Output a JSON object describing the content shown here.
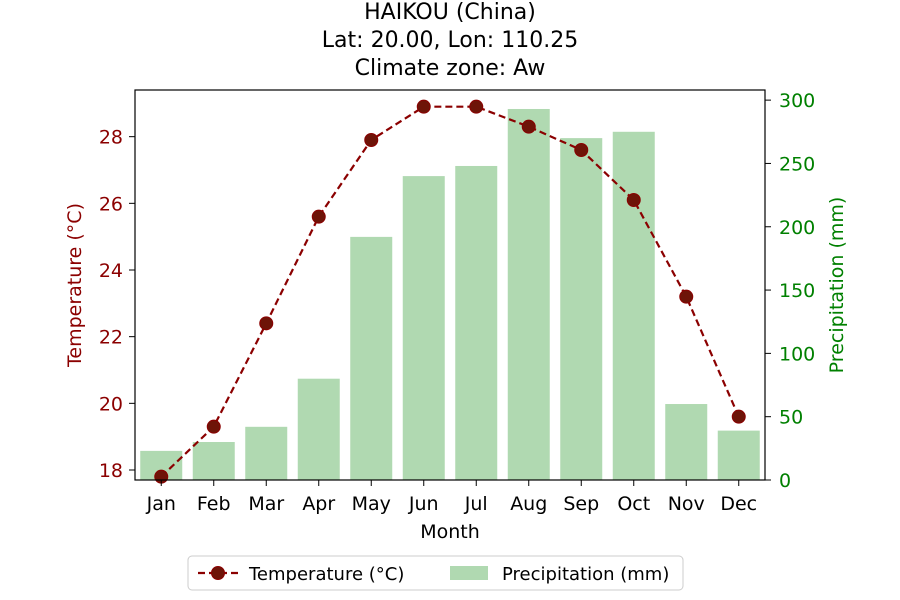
{
  "chart_data": {
    "type": "bar+line",
    "title_lines": [
      "HAIKOU (China)",
      "Lat: 20.00, Lon: 110.25",
      "Climate zone: Aw"
    ],
    "xlabel": "Month",
    "ylabel_left": "Temperature (°C)",
    "ylabel_right": "Precipitation (mm)",
    "categories": [
      "Jan",
      "Feb",
      "Mar",
      "Apr",
      "May",
      "Jun",
      "Jul",
      "Aug",
      "Sep",
      "Oct",
      "Nov",
      "Dec"
    ],
    "temperature": {
      "name": "Temperature (°C)",
      "values": [
        17.8,
        19.3,
        22.4,
        25.6,
        27.9,
        28.9,
        28.9,
        28.3,
        27.6,
        26.1,
        23.2,
        19.6
      ],
      "color": "#8b0000",
      "axis": "left",
      "ylim": [
        17.7,
        29.4
      ],
      "ticks": [
        18,
        20,
        22,
        24,
        26,
        28
      ]
    },
    "precipitation": {
      "name": "Precipitation (mm)",
      "values": [
        23,
        30,
        42,
        80,
        192,
        240,
        248,
        293,
        270,
        275,
        60,
        39
      ],
      "color": "#b0d9b1",
      "axis": "right",
      "ylim": [
        0,
        308
      ],
      "ticks": [
        0,
        50,
        100,
        150,
        200,
        250,
        300
      ]
    },
    "legend": {
      "placement": "bottom-center",
      "entries": [
        "Temperature (°C)",
        "Precipitation (mm)"
      ]
    },
    "grid": false,
    "colors": {
      "left_axis": "#8b0000",
      "right_axis": "#008000",
      "temp_marker_fill": "#6e1408"
    }
  }
}
